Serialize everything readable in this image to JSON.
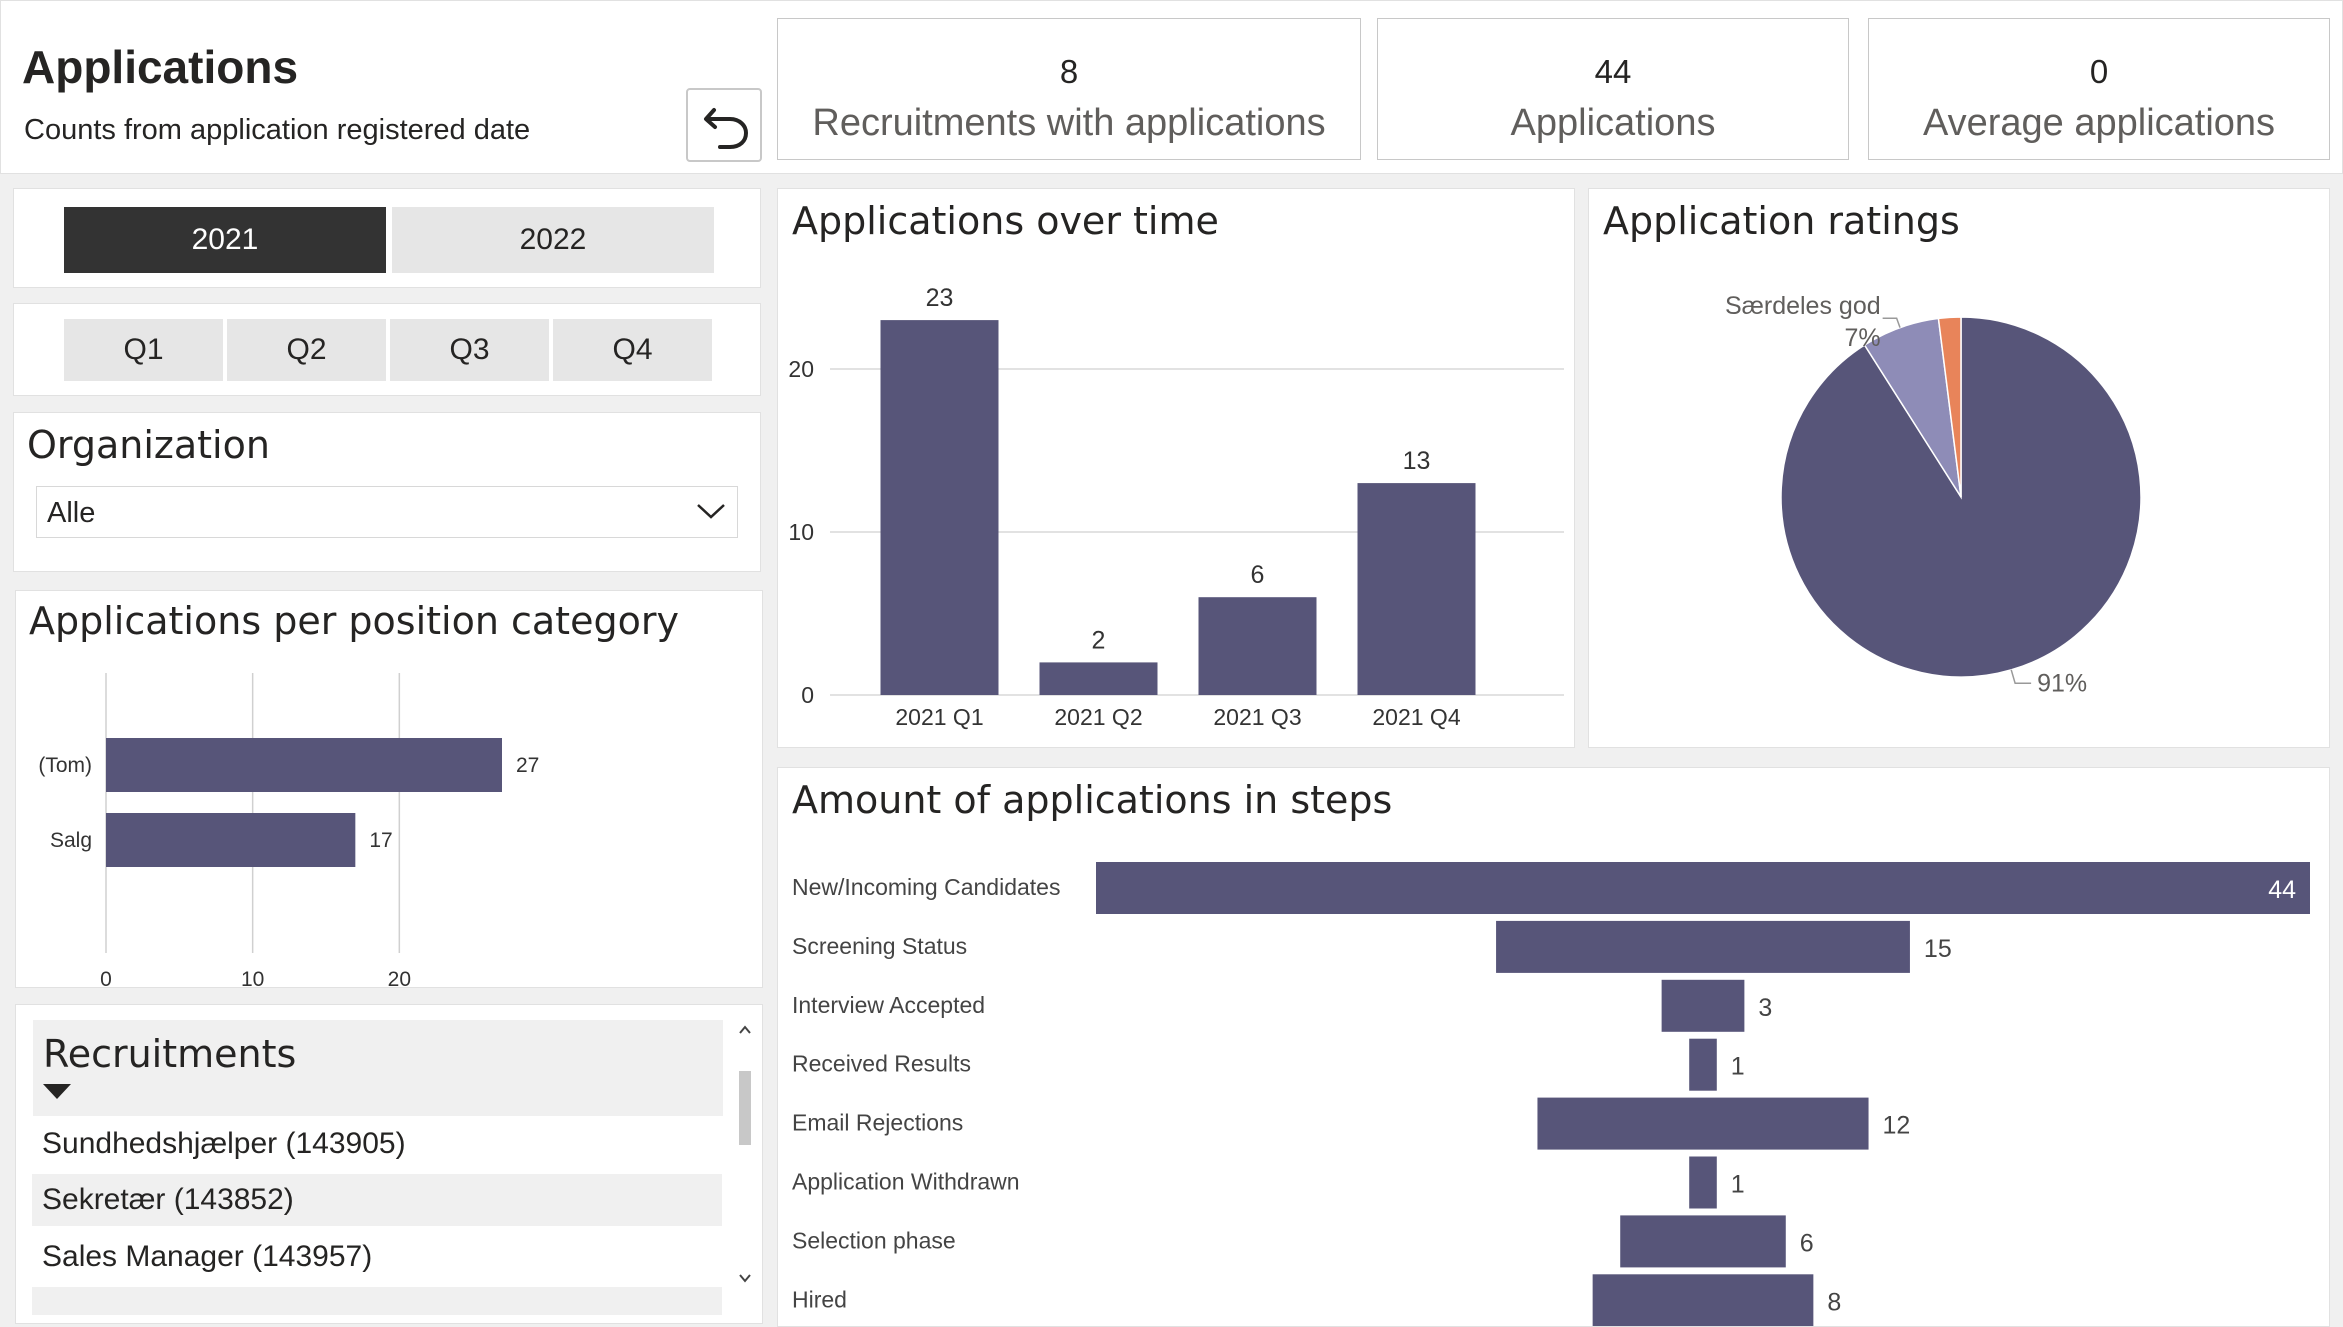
{
  "header": {
    "title": "Applications",
    "subtitle": "Counts from application registered date",
    "reset_icon": "undo-arrow-icon"
  },
  "kpis": [
    {
      "value": "8",
      "label": "Recruitments with applications"
    },
    {
      "value": "44",
      "label": "Applications"
    },
    {
      "value": "0",
      "label": "Average applications"
    }
  ],
  "year_slicer": {
    "options": [
      "2021",
      "2022"
    ],
    "selected": "2021"
  },
  "quarter_slicer": {
    "options": [
      "Q1",
      "Q2",
      "Q3",
      "Q4"
    ]
  },
  "organization": {
    "title": "Organization",
    "selected_value": "Alle",
    "chevron_icon": "chevron-down-icon"
  },
  "recruitments": {
    "title": "Recruitments",
    "sort_icon": "caret-down-icon",
    "items": [
      "Sundhedshjælper (143905)",
      "Sekretær (143852)",
      "Sales Manager (143957)"
    ],
    "scroll_up_icon": "chevron-up-icon",
    "scroll_down_icon": "chevron-down-icon"
  },
  "colors": {
    "bar": "#575579",
    "pie_secondary": "#8e8cb7",
    "pie_accent": "#e8845a",
    "selected_slicer": "#333333",
    "unselected_slicer": "#e6e6e6"
  },
  "chart_data": [
    {
      "id": "position-category",
      "type": "bar",
      "orientation": "horizontal",
      "title": "Applications per position category",
      "categories": [
        "(Tom)",
        "Salg"
      ],
      "values": [
        27,
        17
      ],
      "xlim": [
        0,
        30
      ],
      "xticks": [
        0,
        10,
        20
      ],
      "grid": true
    },
    {
      "id": "applications-over-time",
      "type": "bar",
      "title": "Applications over time",
      "categories": [
        "2021 Q1",
        "2021 Q2",
        "2021 Q3",
        "2021 Q4"
      ],
      "values": [
        23,
        2,
        6,
        13
      ],
      "ylim": [
        0,
        25
      ],
      "yticks": [
        0,
        10,
        20
      ],
      "grid": true
    },
    {
      "id": "application-ratings",
      "type": "pie",
      "title": "Application ratings",
      "slices": [
        {
          "label": "",
          "value": 91,
          "display": "91%",
          "color": "#575579"
        },
        {
          "label": "Særdeles god",
          "value": 7,
          "display": "7%",
          "color": "#8e8cb7"
        },
        {
          "label": "",
          "value": 2,
          "display": "",
          "color": "#e8845a"
        }
      ]
    },
    {
      "id": "applications-in-steps",
      "type": "bar",
      "orientation": "funnel",
      "title": "Amount of applications in steps",
      "categories": [
        "New/Incoming Candidates",
        "Screening Status",
        "Interview Accepted",
        "Received Results",
        "Email Rejections",
        "Application Withdrawn",
        "Selection phase",
        "Hired"
      ],
      "values": [
        44,
        15,
        3,
        1,
        12,
        1,
        6,
        8
      ]
    }
  ]
}
